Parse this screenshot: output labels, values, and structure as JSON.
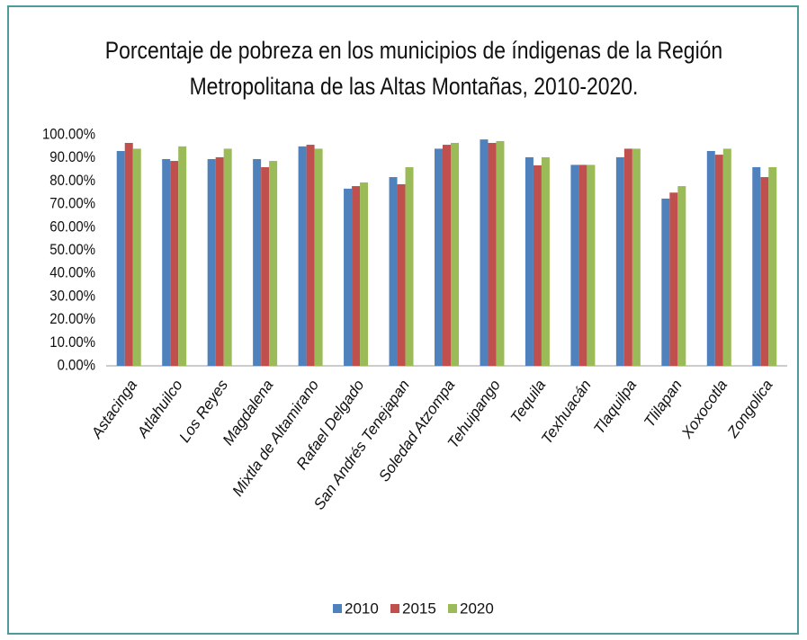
{
  "chart_data": {
    "type": "bar",
    "title": "Porcentaje de pobreza en los municipios de índigenas de la Región Metropolitana de las Altas Montañas, 2010-2020.",
    "categories": [
      "Astacinga",
      "Atlahuilco",
      "Los Reyes",
      "Magdalena",
      "Mixtla de Altamirano",
      "Rafael Delgado",
      "San Andrés Tenejapan",
      "Soledad Atzompa",
      "Tehuipango",
      "Tequila",
      "Texhuacán",
      "Tlaquilpa",
      "Tlilapan",
      "Xoxocotla",
      "Zongolica"
    ],
    "series": [
      {
        "name": "2010",
        "color": "#4f81bd",
        "values": [
          93,
          89.5,
          89.5,
          89.5,
          95,
          76.7,
          81.7,
          94,
          98,
          90.3,
          87,
          90.3,
          72.4,
          93,
          86
        ]
      },
      {
        "name": "2015",
        "color": "#c0504d",
        "values": [
          96.5,
          88.7,
          90.3,
          86,
          95.7,
          77.8,
          78.6,
          95.7,
          96.5,
          86.8,
          87,
          94,
          75,
          91.4,
          81.7
        ]
      },
      {
        "name": "2020",
        "color": "#9bbb59",
        "values": [
          94,
          95,
          94,
          88.7,
          94,
          79.4,
          86,
          96.5,
          97.3,
          90.3,
          87,
          94,
          77.8,
          94,
          86
        ]
      }
    ],
    "ylim": [
      0,
      100
    ],
    "yticks": [
      {
        "value": 0,
        "label": "0.00%"
      },
      {
        "value": 10,
        "label": "10.00%"
      },
      {
        "value": 20,
        "label": "20.00%"
      },
      {
        "value": 30,
        "label": "30.00%"
      },
      {
        "value": 40,
        "label": "40.00%"
      },
      {
        "value": 50,
        "label": "50.00%"
      },
      {
        "value": 60,
        "label": "60.00%"
      },
      {
        "value": 70,
        "label": "70.00%"
      },
      {
        "value": 80,
        "label": "80.00%"
      },
      {
        "value": 90,
        "label": "90.00%"
      },
      {
        "value": 100,
        "label": "100.00%"
      }
    ],
    "grid": false,
    "legend": "bottom"
  }
}
